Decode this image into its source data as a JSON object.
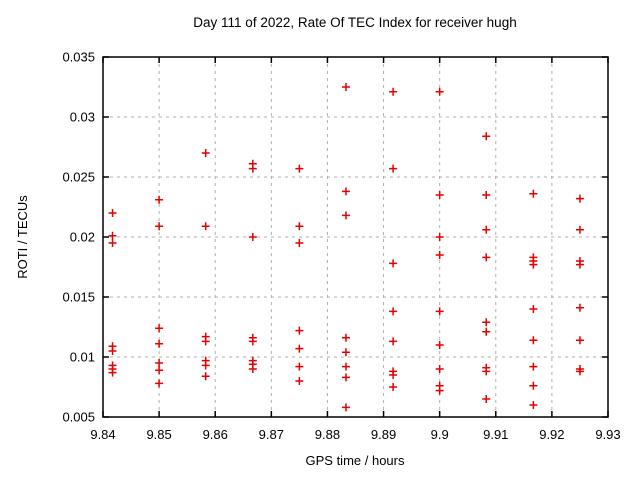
{
  "chart_data": {
    "type": "scatter",
    "title": "Day 111 of 2022, Rate Of TEC Index for receiver hugh",
    "xlabel": "GPS time / hours",
    "ylabel": "ROTI / TECUs",
    "xlim": [
      9.84,
      9.93
    ],
    "ylim": [
      0.005,
      0.035
    ],
    "xticks": [
      9.84,
      9.85,
      9.86,
      9.87,
      9.88,
      9.89,
      9.9,
      9.91,
      9.92,
      9.93
    ],
    "xtick_labels": [
      "9.84",
      "9.85",
      "9.86",
      "9.87",
      "9.88",
      "9.89",
      "9.9",
      "9.91",
      "9.92",
      "9.93"
    ],
    "yticks": [
      0.005,
      0.01,
      0.015,
      0.02,
      0.025,
      0.03,
      0.035
    ],
    "ytick_labels": [
      "0.005",
      "0.01",
      "0.015",
      "0.02",
      "0.025",
      "0.03",
      "0.035"
    ],
    "grid": true,
    "legend": "none",
    "marker": "plus",
    "marker_color": "#e60000",
    "grid_color": "#b0b0b0",
    "axis_color": "#000000",
    "series": [
      {
        "name": "ROTI",
        "points": [
          [
            9.8417,
            0.022
          ],
          [
            9.8417,
            0.0201
          ],
          [
            9.8417,
            0.0195
          ],
          [
            9.8417,
            0.0109
          ],
          [
            9.8417,
            0.0105
          ],
          [
            9.8417,
            0.0093
          ],
          [
            9.8417,
            0.009
          ],
          [
            9.8417,
            0.0087
          ],
          [
            9.85,
            0.0231
          ],
          [
            9.85,
            0.0209
          ],
          [
            9.85,
            0.0124
          ],
          [
            9.85,
            0.0111
          ],
          [
            9.85,
            0.0095
          ],
          [
            9.85,
            0.0089
          ],
          [
            9.85,
            0.0078
          ],
          [
            9.8583,
            0.027
          ],
          [
            9.8583,
            0.0209
          ],
          [
            9.8583,
            0.0117
          ],
          [
            9.8583,
            0.0113
          ],
          [
            9.8583,
            0.0097
          ],
          [
            9.8583,
            0.0093
          ],
          [
            9.8583,
            0.0084
          ],
          [
            9.8667,
            0.0261
          ],
          [
            9.8667,
            0.0257
          ],
          [
            9.8667,
            0.02
          ],
          [
            9.8667,
            0.0116
          ],
          [
            9.8667,
            0.0113
          ],
          [
            9.8667,
            0.0097
          ],
          [
            9.8667,
            0.0094
          ],
          [
            9.8667,
            0.009
          ],
          [
            9.875,
            0.0257
          ],
          [
            9.875,
            0.0209
          ],
          [
            9.875,
            0.0195
          ],
          [
            9.875,
            0.0122
          ],
          [
            9.875,
            0.0107
          ],
          [
            9.875,
            0.0092
          ],
          [
            9.875,
            0.008
          ],
          [
            9.8833,
            0.0325
          ],
          [
            9.8833,
            0.0238
          ],
          [
            9.8833,
            0.0218
          ],
          [
            9.8833,
            0.0116
          ],
          [
            9.8833,
            0.0104
          ],
          [
            9.8833,
            0.0092
          ],
          [
            9.8833,
            0.0083
          ],
          [
            9.8833,
            0.0058
          ],
          [
            9.8917,
            0.0321
          ],
          [
            9.8917,
            0.0257
          ],
          [
            9.8917,
            0.0178
          ],
          [
            9.8917,
            0.0138
          ],
          [
            9.8917,
            0.0113
          ],
          [
            9.8917,
            0.0088
          ],
          [
            9.8917,
            0.0085
          ],
          [
            9.8917,
            0.0075
          ],
          [
            9.9,
            0.0321
          ],
          [
            9.9,
            0.0235
          ],
          [
            9.9,
            0.02
          ],
          [
            9.9,
            0.0185
          ],
          [
            9.9,
            0.0138
          ],
          [
            9.9,
            0.011
          ],
          [
            9.9,
            0.009
          ],
          [
            9.9,
            0.0076
          ],
          [
            9.9,
            0.0072
          ],
          [
            9.9083,
            0.0284
          ],
          [
            9.9083,
            0.0235
          ],
          [
            9.9083,
            0.0206
          ],
          [
            9.9083,
            0.0183
          ],
          [
            9.9083,
            0.0129
          ],
          [
            9.9083,
            0.0121
          ],
          [
            9.9083,
            0.0091
          ],
          [
            9.9083,
            0.0088
          ],
          [
            9.9083,
            0.0065
          ],
          [
            9.9167,
            0.0236
          ],
          [
            9.9167,
            0.0183
          ],
          [
            9.9167,
            0.018
          ],
          [
            9.9167,
            0.0177
          ],
          [
            9.9167,
            0.014
          ],
          [
            9.9167,
            0.0114
          ],
          [
            9.9167,
            0.0092
          ],
          [
            9.9167,
            0.0076
          ],
          [
            9.9167,
            0.006
          ],
          [
            9.925,
            0.0232
          ],
          [
            9.925,
            0.0206
          ],
          [
            9.925,
            0.018
          ],
          [
            9.925,
            0.0177
          ],
          [
            9.925,
            0.0141
          ],
          [
            9.925,
            0.0114
          ],
          [
            9.925,
            0.009
          ],
          [
            9.925,
            0.0088
          ]
        ]
      }
    ]
  }
}
